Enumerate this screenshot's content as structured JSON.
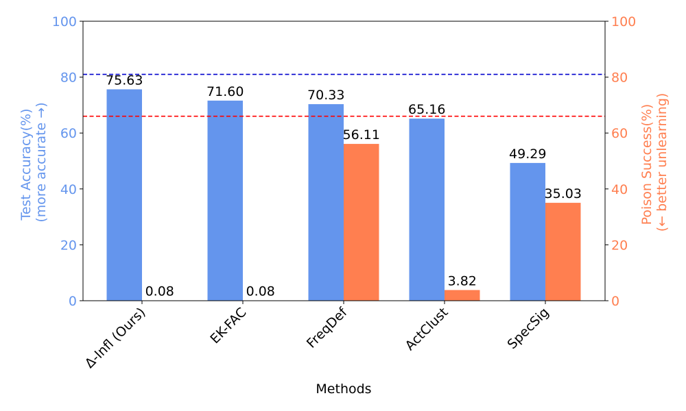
{
  "chart_data": {
    "type": "bar",
    "categories": [
      "Δ-Infl (Ours)",
      "EK-FAC",
      "FreqDef",
      "ActClust",
      "SpecSig"
    ],
    "series": [
      {
        "axis": "left",
        "color": "#6495ED",
        "values": [
          75.63,
          71.6,
          70.33,
          65.16,
          49.29
        ],
        "labels": [
          "75.63",
          "71.60",
          "70.33",
          "65.16",
          "49.29"
        ]
      },
      {
        "axis": "right",
        "color": "#FF7F50",
        "values": [
          0.08,
          0.08,
          56.11,
          3.82,
          35.03
        ],
        "labels": [
          "0.08",
          "0.08",
          "56.11",
          "3.82",
          "35.03"
        ]
      }
    ],
    "reference_lines": [
      {
        "axis": "left",
        "value": 81,
        "color": "#0000CD",
        "style": "dashed"
      },
      {
        "axis": "left",
        "value": 66,
        "color": "#FF0000",
        "style": "dashed"
      }
    ],
    "xlabel": "Methods",
    "ylabel_left": [
      "Test Accuracy(%)",
      "(more accurate →)"
    ],
    "ylabel_right": [
      "Poison Success(%)",
      "(← better unlearning)"
    ],
    "ylim_left": [
      0,
      100
    ],
    "ylim_right": [
      0,
      100
    ],
    "yticks": [
      0,
      20,
      40,
      60,
      80,
      100
    ],
    "left_axis_color": "#6495ED",
    "right_axis_color": "#FF7F50",
    "grid": false,
    "legend": "none"
  }
}
